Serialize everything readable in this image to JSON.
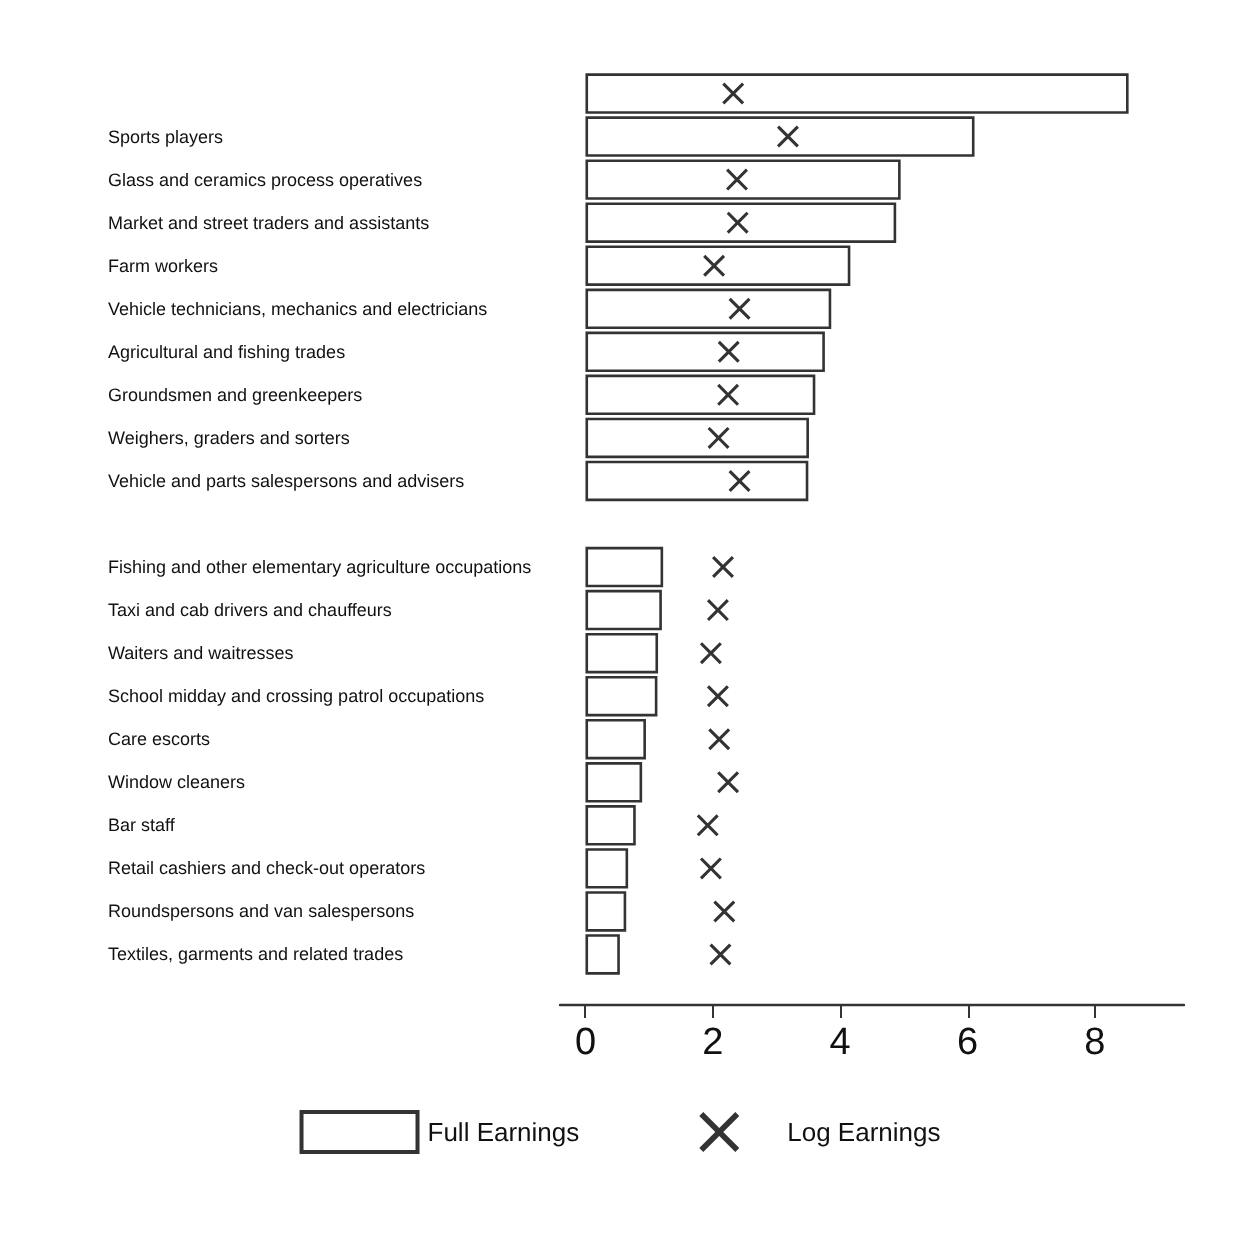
{
  "chart_data": {
    "type": "bar",
    "orientation": "horizontal",
    "categories": [
      null,
      "Sports players",
      "Glass and ceramics process operatives",
      "Market and street traders and assistants",
      "Farm workers",
      "Vehicle technicians, mechanics and electricians",
      "Agricultural and fishing trades",
      "Groundsmen and greenkeepers",
      "Weighers, graders and sorters",
      "Vehicle and parts salespersons and advisers",
      null,
      "Fishing and other elementary agriculture occupations",
      "Taxi and cab drivers and chauffeurs",
      "Waiters and waitresses",
      "School midday and crossing patrol occupations",
      "Care escorts",
      "Window cleaners",
      "Bar staff",
      "Retail cashiers and check-out operators",
      "Roundspersons and van salespersons",
      "Textiles, garments and related trades"
    ],
    "series": [
      {
        "name": "Full Earnings",
        "color": "#ffffff",
        "values": [
          8.53,
          6.11,
          4.95,
          4.88,
          4.16,
          3.86,
          3.76,
          3.61,
          3.51,
          3.5,
          null,
          1.22,
          1.2,
          1.14,
          1.13,
          0.95,
          0.89,
          0.79,
          0.67,
          0.64,
          0.54
        ]
      },
      {
        "name": "Log Earnings",
        "type": "scatter",
        "color": "#000000",
        "values": [
          2.32,
          3.18,
          2.38,
          2.39,
          2.02,
          2.42,
          2.25,
          2.24,
          2.09,
          2.42,
          null,
          2.16,
          2.08,
          1.97,
          2.08,
          2.1,
          2.24,
          1.92,
          1.97,
          2.18,
          2.12
        ]
      }
    ],
    "xlim": [
      -0.4,
      9.4
    ],
    "xticks": [
      0,
      2,
      4,
      6,
      8
    ],
    "marker": "cross",
    "legend": "bottom",
    "grid": false
  }
}
